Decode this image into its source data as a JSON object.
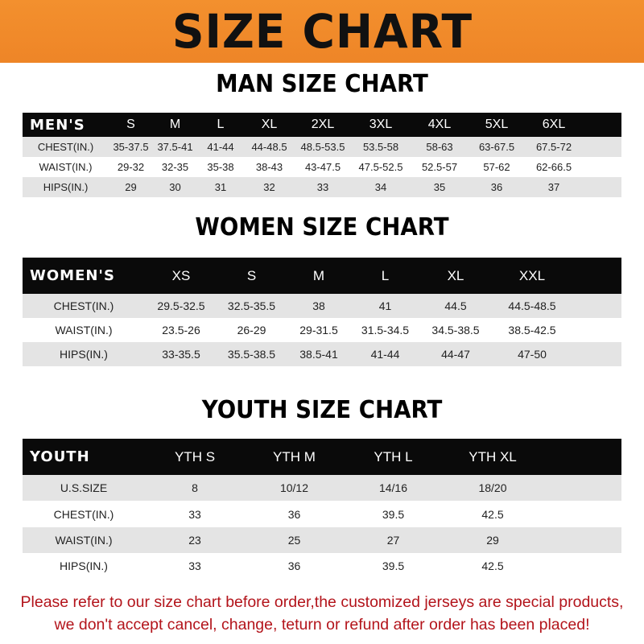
{
  "banner_title": "SIZE CHART",
  "men": {
    "title": "MAN SIZE CHART",
    "header": [
      "MEN'S",
      "S",
      "M",
      "L",
      "XL",
      "2XL",
      "3XL",
      "4XL",
      "5XL",
      "6XL"
    ],
    "rows": [
      [
        "CHEST(IN.)",
        "35-37.5",
        "37.5-41",
        "41-44",
        "44-48.5",
        "48.5-53.5",
        "53.5-58",
        "58-63",
        "63-67.5",
        "67.5-72"
      ],
      [
        "WAIST(IN.)",
        "29-32",
        "32-35",
        "35-38",
        "38-43",
        "43-47.5",
        "47.5-52.5",
        "52.5-57",
        "57-62",
        "62-66.5"
      ],
      [
        "HIPS(IN.)",
        "29",
        "30",
        "31",
        "32",
        "33",
        "34",
        "35",
        "36",
        "37"
      ]
    ]
  },
  "women": {
    "title": "WOMEN SIZE CHART",
    "header": [
      "WOMEN'S",
      "XS",
      "S",
      "M",
      "L",
      "XL",
      "XXL"
    ],
    "rows": [
      [
        "CHEST(IN.)",
        "29.5-32.5",
        "32.5-35.5",
        "38",
        "41",
        "44.5",
        "44.5-48.5"
      ],
      [
        "WAIST(IN.)",
        "23.5-26",
        "26-29",
        "29-31.5",
        "31.5-34.5",
        "34.5-38.5",
        "38.5-42.5"
      ],
      [
        "HIPS(IN.)",
        "33-35.5",
        "35.5-38.5",
        "38.5-41",
        "41-44",
        "44-47",
        "47-50"
      ]
    ]
  },
  "youth": {
    "title": "YOUTH SIZE CHART",
    "header": [
      "YOUTH",
      "YTH S",
      "YTH M",
      "YTH L",
      "YTH XL"
    ],
    "rows": [
      [
        "U.S.SIZE",
        "8",
        "10/12",
        "14/16",
        "18/20"
      ],
      [
        "CHEST(IN.)",
        "33",
        "36",
        "39.5",
        "42.5"
      ],
      [
        "WAIST(IN.)",
        "23",
        "25",
        "27",
        "29"
      ],
      [
        "HIPS(IN.)",
        "33",
        "36",
        "39.5",
        "42.5"
      ]
    ]
  },
  "note": {
    "line1": "Please refer to our size chart before order,the customized jerseys are special products,",
    "line2": "we don't accept cancel, change, teturn or refund after order has been placed!"
  },
  "colors": {
    "banner": "#f08a2a",
    "header_row": "#0a0a0a",
    "stripe": "#e4e4e4",
    "note": "#b3141b"
  }
}
